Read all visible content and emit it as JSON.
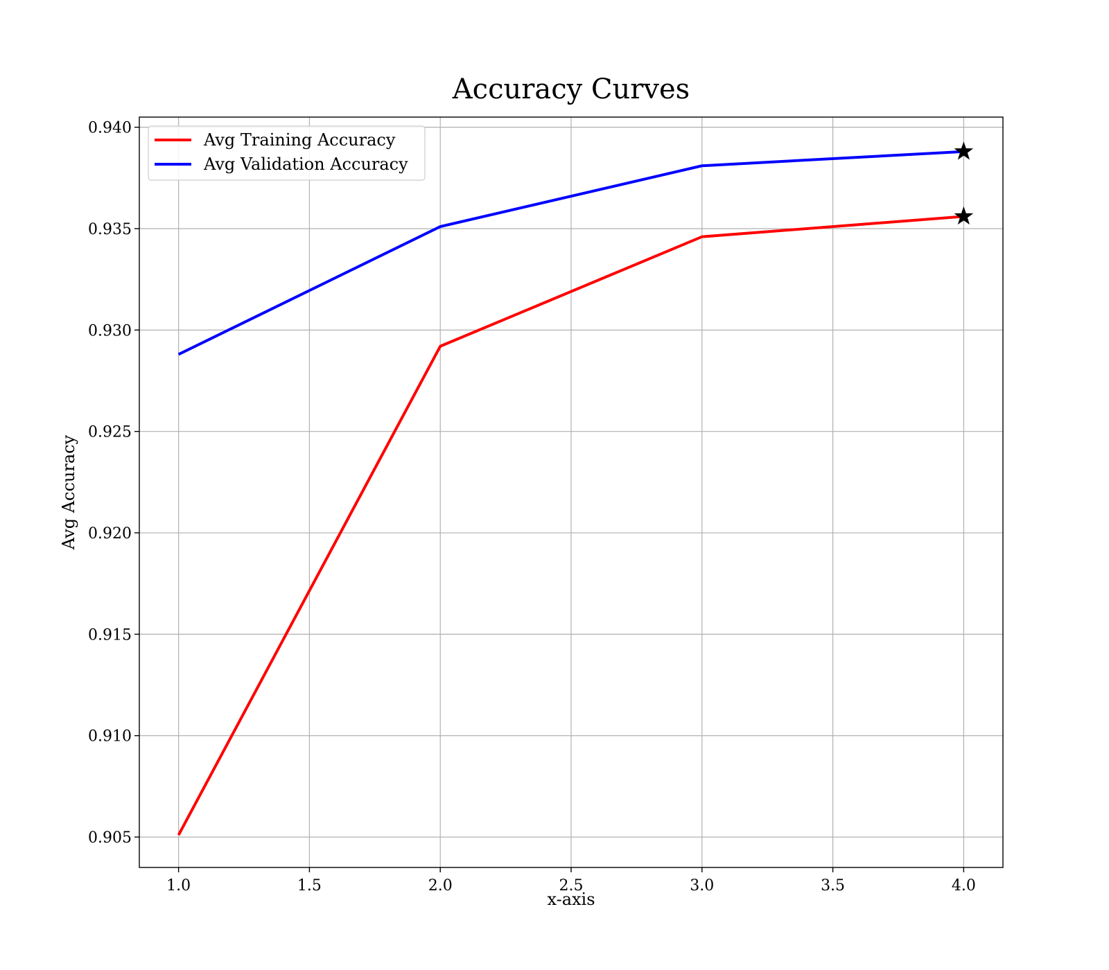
{
  "chart_data": {
    "type": "line",
    "title": "Accuracy Curves",
    "xlabel": "x-axis",
    "ylabel": "Avg Accuracy",
    "xlim": [
      0.85,
      4.15
    ],
    "ylim": [
      0.9035,
      0.9405
    ],
    "xticks": [
      1.0,
      1.5,
      2.0,
      2.5,
      3.0,
      3.5,
      4.0
    ],
    "xtick_labels": [
      "1.0",
      "1.5",
      "2.0",
      "2.5",
      "3.0",
      "3.5",
      "4.0"
    ],
    "yticks": [
      0.905,
      0.91,
      0.915,
      0.92,
      0.925,
      0.93,
      0.935,
      0.94
    ],
    "ytick_labels": [
      "0.905",
      "0.910",
      "0.915",
      "0.920",
      "0.925",
      "0.930",
      "0.935",
      "0.940"
    ],
    "grid": true,
    "legend_position": "top-left",
    "x": [
      1,
      2,
      3,
      4
    ],
    "series": [
      {
        "name": "Avg Training Accuracy",
        "color": "#ff0000",
        "values": [
          0.9051,
          0.9292,
          0.9346,
          0.9356
        ],
        "best_marker": "star"
      },
      {
        "name": "Avg Validation Accuracy",
        "color": "#0000ff",
        "values": [
          0.9288,
          0.9351,
          0.9381,
          0.9388
        ],
        "best_marker": "star"
      }
    ]
  }
}
